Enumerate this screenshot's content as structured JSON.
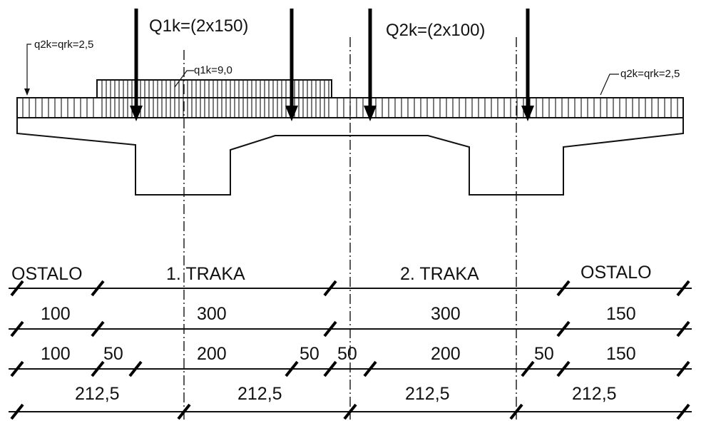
{
  "loads": {
    "q2k_left": "q2k=qrk=2,5",
    "q2k_right": "q2k=qrk=2,5",
    "q1k": "q1k=9,0",
    "Q1k": "Q1k=(2x150)",
    "Q2k": "Q2k=(2x100)"
  },
  "dimension_rows": [
    {
      "labels": [
        {
          "text": "OSTALO"
        },
        {
          "text": "1. TRAKA"
        },
        {
          "text": "2. TRAKA"
        },
        {
          "text": "OSTALO"
        }
      ]
    },
    {
      "labels": [
        {
          "text": "100"
        },
        {
          "text": "300"
        },
        {
          "text": "300"
        },
        {
          "text": "150"
        }
      ]
    },
    {
      "labels": [
        {
          "text": "100"
        },
        {
          "text": "50"
        },
        {
          "text": "200"
        },
        {
          "text": "50"
        },
        {
          "text": "50"
        },
        {
          "text": "200"
        },
        {
          "text": "50"
        },
        {
          "text": "150"
        }
      ]
    },
    {
      "labels": [
        {
          "text": "212,5"
        },
        {
          "text": "212,5"
        },
        {
          "text": "212,5"
        },
        {
          "text": "212,5"
        }
      ]
    }
  ]
}
